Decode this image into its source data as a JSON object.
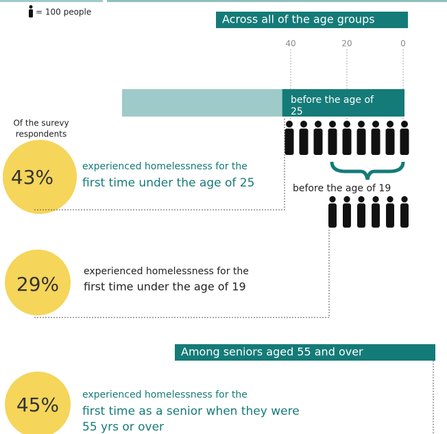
{
  "legend": {
    "label": "= 100 people"
  },
  "across": {
    "title": "Across all of the age groups",
    "xticks": [
      40,
      20,
      0
    ],
    "xlim": [
      100,
      0
    ],
    "total": 100,
    "value": 43,
    "bar_label": [
      "before the age of",
      "25"
    ],
    "second_label": "before the age of 19"
  },
  "respondents": [
    "Of the surevy",
    "respondents"
  ],
  "stats": [
    {
      "percent": "43%",
      "lines": [
        "experienced homelessness for the",
        "first time under the age of 25"
      ]
    },
    {
      "percent": "29%",
      "lines": [
        "experienced homelessness for the",
        "first time under the age of 19"
      ]
    },
    {
      "percent": "45%",
      "lines": [
        "experienced homelessness for the",
        "first time as a senior when they were",
        "55 yrs or over"
      ]
    }
  ],
  "seniors": {
    "title": "Among seniors aged 55 and over"
  }
}
